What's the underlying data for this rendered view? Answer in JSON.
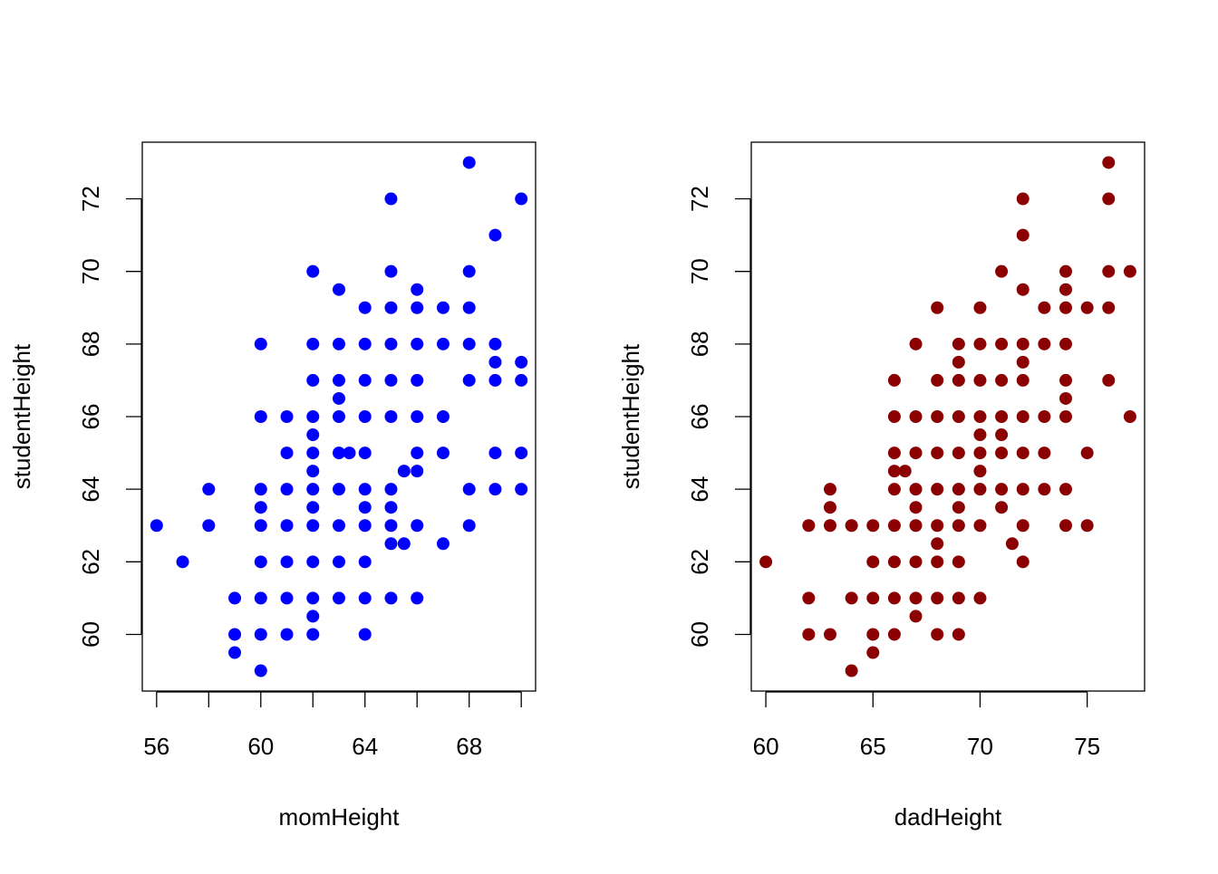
{
  "chart_data": [
    {
      "type": "scatter",
      "xlabel": "momHeight",
      "ylabel": "studentHeight",
      "xlim": [
        55.45,
        70.55
      ],
      "ylim": [
        58.44,
        73.56
      ],
      "xticks": [
        56,
        58,
        60,
        62,
        64,
        66,
        68,
        70
      ],
      "xticklabels": [
        "56",
        "",
        "60",
        "",
        "64",
        "",
        "68",
        ""
      ],
      "yticks": [
        60,
        62,
        64,
        66,
        68,
        70,
        72
      ],
      "yticklabels": [
        "60",
        "62",
        "64",
        "66",
        "68",
        "70",
        "72"
      ],
      "grid": false,
      "color": "#0000ff",
      "points": [
        [
          56,
          63
        ],
        [
          57,
          62
        ],
        [
          58,
          64
        ],
        [
          58,
          63
        ],
        [
          59,
          61
        ],
        [
          59,
          60
        ],
        [
          59,
          59.5
        ],
        [
          60,
          68
        ],
        [
          60,
          66
        ],
        [
          60,
          64
        ],
        [
          60,
          63.5
        ],
        [
          60,
          63
        ],
        [
          60,
          62
        ],
        [
          60,
          61
        ],
        [
          60,
          60
        ],
        [
          60,
          59
        ],
        [
          61,
          66
        ],
        [
          61,
          65
        ],
        [
          61,
          64
        ],
        [
          61,
          63
        ],
        [
          61,
          62
        ],
        [
          61,
          61
        ],
        [
          61,
          60
        ],
        [
          62,
          70
        ],
        [
          62,
          68
        ],
        [
          62,
          67
        ],
        [
          62,
          66
        ],
        [
          62,
          65.5
        ],
        [
          62,
          65
        ],
        [
          62,
          64.5
        ],
        [
          62,
          64
        ],
        [
          62,
          63.5
        ],
        [
          62,
          63
        ],
        [
          62,
          62
        ],
        [
          62,
          61
        ],
        [
          62,
          60.5
        ],
        [
          62,
          60
        ],
        [
          63,
          69.5
        ],
        [
          63,
          68
        ],
        [
          63,
          67
        ],
        [
          63,
          66.5
        ],
        [
          63,
          66
        ],
        [
          63,
          65
        ],
        [
          63,
          64
        ],
        [
          63,
          63
        ],
        [
          63,
          62
        ],
        [
          63,
          61
        ],
        [
          63.4,
          65
        ],
        [
          64,
          69
        ],
        [
          64,
          68
        ],
        [
          64,
          67
        ],
        [
          64,
          66
        ],
        [
          64,
          65
        ],
        [
          64,
          64
        ],
        [
          64,
          63.5
        ],
        [
          64,
          63
        ],
        [
          64,
          62
        ],
        [
          64,
          61
        ],
        [
          64,
          60
        ],
        [
          65,
          72
        ],
        [
          65,
          70
        ],
        [
          65,
          69
        ],
        [
          65,
          68
        ],
        [
          65,
          67
        ],
        [
          65,
          66
        ],
        [
          65,
          64
        ],
        [
          65,
          63.5
        ],
        [
          65,
          63
        ],
        [
          65,
          62.5
        ],
        [
          65,
          61
        ],
        [
          65.5,
          64.5
        ],
        [
          65.5,
          62.5
        ],
        [
          66,
          69.5
        ],
        [
          66,
          69
        ],
        [
          66,
          68
        ],
        [
          66,
          67
        ],
        [
          66,
          66
        ],
        [
          66,
          65
        ],
        [
          66,
          64.5
        ],
        [
          66,
          63
        ],
        [
          66,
          61
        ],
        [
          67,
          69
        ],
        [
          67,
          68
        ],
        [
          67,
          66
        ],
        [
          67,
          65
        ],
        [
          67,
          62.5
        ],
        [
          68,
          73
        ],
        [
          68,
          70
        ],
        [
          68,
          69
        ],
        [
          68,
          68
        ],
        [
          68,
          67
        ],
        [
          68,
          64
        ],
        [
          68,
          63
        ],
        [
          69,
          71
        ],
        [
          69,
          68
        ],
        [
          69,
          67.5
        ],
        [
          69,
          67
        ],
        [
          69,
          65
        ],
        [
          69,
          64
        ],
        [
          70,
          72
        ],
        [
          70,
          67.5
        ],
        [
          70,
          67
        ],
        [
          70,
          65
        ],
        [
          70,
          64
        ]
      ]
    },
    {
      "type": "scatter",
      "xlabel": "dadHeight",
      "ylabel": "studentHeight",
      "xlim": [
        59.32,
        77.68
      ],
      "ylim": [
        58.44,
        73.56
      ],
      "xticks": [
        60,
        65,
        70,
        75
      ],
      "xticklabels": [
        "60",
        "65",
        "70",
        "75"
      ],
      "yticks": [
        60,
        62,
        64,
        66,
        68,
        70,
        72
      ],
      "yticklabels": [
        "60",
        "62",
        "64",
        "66",
        "68",
        "70",
        "72"
      ],
      "grid": false,
      "color": "#8b0000",
      "points": [
        [
          60,
          62
        ],
        [
          62,
          63
        ],
        [
          62,
          61
        ],
        [
          62,
          60
        ],
        [
          63,
          64
        ],
        [
          63,
          63.5
        ],
        [
          63,
          63
        ],
        [
          63,
          60
        ],
        [
          64,
          63
        ],
        [
          64,
          61
        ],
        [
          64,
          59
        ],
        [
          65,
          63
        ],
        [
          65,
          62
        ],
        [
          65,
          61
        ],
        [
          65,
          60
        ],
        [
          65,
          59.5
        ],
        [
          66,
          67
        ],
        [
          66,
          66
        ],
        [
          66,
          65
        ],
        [
          66,
          64.5
        ],
        [
          66,
          64
        ],
        [
          66,
          63
        ],
        [
          66,
          62
        ],
        [
          66,
          61
        ],
        [
          66,
          60
        ],
        [
          66.5,
          64.5
        ],
        [
          67,
          68
        ],
        [
          67,
          66
        ],
        [
          67,
          65
        ],
        [
          67,
          64
        ],
        [
          67,
          63.5
        ],
        [
          67,
          63
        ],
        [
          67,
          62
        ],
        [
          67,
          61
        ],
        [
          67,
          60.5
        ],
        [
          68,
          69
        ],
        [
          68,
          67
        ],
        [
          68,
          66
        ],
        [
          68,
          65
        ],
        [
          68,
          64
        ],
        [
          68,
          63
        ],
        [
          68,
          62.5
        ],
        [
          68,
          62
        ],
        [
          68,
          61
        ],
        [
          68,
          60
        ],
        [
          69,
          68
        ],
        [
          69,
          67.5
        ],
        [
          69,
          67
        ],
        [
          69,
          66
        ],
        [
          69,
          65
        ],
        [
          69,
          64
        ],
        [
          69,
          63.5
        ],
        [
          69,
          63
        ],
        [
          69,
          62
        ],
        [
          69,
          61
        ],
        [
          69,
          60
        ],
        [
          70,
          69
        ],
        [
          70,
          68
        ],
        [
          70,
          67
        ],
        [
          70,
          66
        ],
        [
          70,
          65.5
        ],
        [
          70,
          65
        ],
        [
          70,
          64.5
        ],
        [
          70,
          64
        ],
        [
          70,
          63
        ],
        [
          70,
          61
        ],
        [
          71,
          70
        ],
        [
          71,
          68
        ],
        [
          71,
          67
        ],
        [
          71,
          66
        ],
        [
          71,
          65.5
        ],
        [
          71,
          65
        ],
        [
          71,
          64
        ],
        [
          71,
          63.5
        ],
        [
          71.5,
          62.5
        ],
        [
          72,
          72
        ],
        [
          72,
          71
        ],
        [
          72,
          69.5
        ],
        [
          72,
          68
        ],
        [
          72,
          67.5
        ],
        [
          72,
          67
        ],
        [
          72,
          66
        ],
        [
          72,
          65
        ],
        [
          72,
          64
        ],
        [
          72,
          63
        ],
        [
          72,
          62
        ],
        [
          73,
          69
        ],
        [
          73,
          68
        ],
        [
          73,
          66
        ],
        [
          73,
          65
        ],
        [
          73,
          64
        ],
        [
          74,
          70
        ],
        [
          74,
          69.5
        ],
        [
          74,
          69
        ],
        [
          74,
          68
        ],
        [
          74,
          67
        ],
        [
          74,
          66.5
        ],
        [
          74,
          66
        ],
        [
          74,
          64
        ],
        [
          74,
          63
        ],
        [
          75,
          69
        ],
        [
          75,
          65
        ],
        [
          75,
          63
        ],
        [
          76,
          73
        ],
        [
          76,
          72
        ],
        [
          76,
          70
        ],
        [
          76,
          69
        ],
        [
          76,
          67
        ],
        [
          77,
          70
        ],
        [
          77,
          66
        ]
      ]
    }
  ]
}
